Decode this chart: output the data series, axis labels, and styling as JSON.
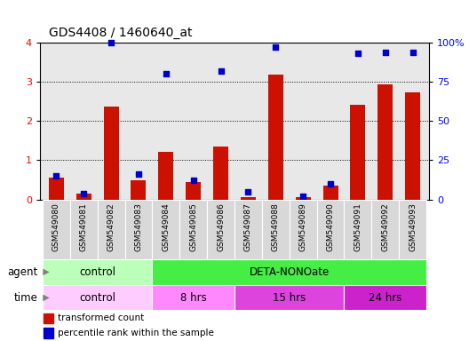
{
  "title": "GDS4408 / 1460640_at",
  "samples": [
    "GSM549080",
    "GSM549081",
    "GSM549082",
    "GSM549083",
    "GSM549084",
    "GSM549085",
    "GSM549086",
    "GSM549087",
    "GSM549088",
    "GSM549089",
    "GSM549090",
    "GSM549091",
    "GSM549092",
    "GSM549093"
  ],
  "red_values": [
    0.55,
    0.15,
    2.38,
    0.5,
    1.22,
    0.45,
    1.35,
    0.05,
    3.18,
    0.05,
    0.35,
    2.42,
    2.93,
    2.73
  ],
  "blue_values": [
    15,
    4,
    100,
    16,
    80,
    12,
    82,
    5,
    97,
    2,
    10,
    93,
    94,
    94
  ],
  "ylim_left": [
    0,
    4
  ],
  "ylim_right": [
    0,
    100
  ],
  "yticks_left": [
    0,
    1,
    2,
    3,
    4
  ],
  "yticks_right": [
    0,
    25,
    50,
    75,
    100
  ],
  "bar_color": "#cc1100",
  "dot_color": "#0000cc",
  "plot_bg_color": "#e8e8e8",
  "agent_groups": [
    {
      "label": "control",
      "start": 0,
      "end": 4,
      "color": "#bbffbb"
    },
    {
      "label": "DETA-NONOate",
      "start": 4,
      "end": 14,
      "color": "#44ee44"
    }
  ],
  "time_colors": [
    "#ffccff",
    "#ff88ff",
    "#dd44dd",
    "#cc22cc"
  ],
  "time_groups": [
    {
      "label": "control",
      "start": 0,
      "end": 4
    },
    {
      "label": "8 hrs",
      "start": 4,
      "end": 7
    },
    {
      "label": "15 hrs",
      "start": 7,
      "end": 11
    },
    {
      "label": "24 hrs",
      "start": 11,
      "end": 14
    }
  ],
  "legend_items": [
    {
      "label": "transformed count",
      "color": "#cc1100"
    },
    {
      "label": "percentile rank within the sample",
      "color": "#0000cc"
    }
  ]
}
